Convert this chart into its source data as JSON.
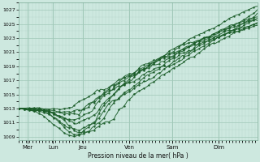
{
  "title": "",
  "xlabel": "Pression niveau de la mer( hPa )",
  "ylabel": "",
  "bg_color": "#cde8df",
  "grid_major_color": "#a0c8b8",
  "grid_minor_color": "#b8d8cc",
  "line_color": "#1a5c28",
  "ylim": [
    1008.5,
    1028.0
  ],
  "yticks": [
    1009,
    1011,
    1013,
    1015,
    1017,
    1019,
    1021,
    1023,
    1025,
    1027
  ],
  "day_labels": [
    "Mer",
    "Lun",
    "Jeu",
    "Ven",
    "Sam",
    "Dim"
  ],
  "num_points": 144,
  "num_lines": 9
}
